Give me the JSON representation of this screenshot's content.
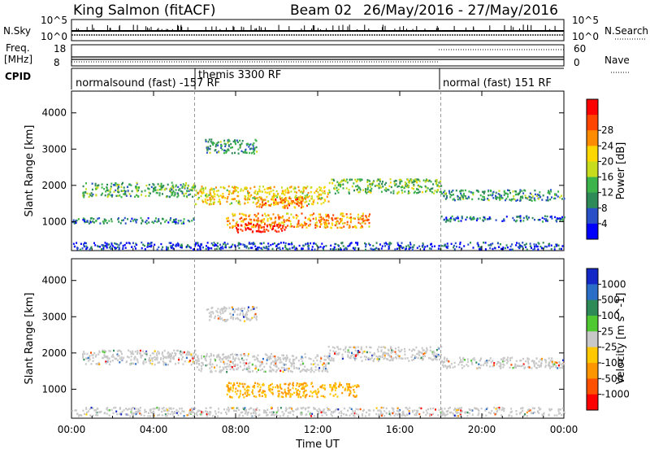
{
  "header": {
    "station": "King Salmon (fitACF)",
    "beam": "Beam 02",
    "date_range": "26/May/2016 - 27/May/2016"
  },
  "strips": {
    "nsky_label": "N.Sky",
    "nsky_ticks": [
      "10^5",
      "10^0"
    ],
    "nsearch_label": "N.Search",
    "nsearch_ticks": [
      "10^5",
      "10^0"
    ],
    "freq_label_line1": "Freq.",
    "freq_label_line2": "[MHz]",
    "freq_ticks": [
      "18",
      "8"
    ],
    "nave_label": "Nave",
    "nave_ticks": [
      "60",
      "0"
    ],
    "cpid_label": "CPID",
    "cpid_segments": [
      {
        "label": "normalsound (fast) -157 RF",
        "start_hour": 0
      },
      {
        "label": "themis 3300 RF",
        "start_hour": 6
      },
      {
        "label": "normal (fast) 151 RF",
        "start_hour": 18
      }
    ]
  },
  "chart_data": [
    {
      "type": "heatmap",
      "panel": "power",
      "ylabel": "Slant Range [km]",
      "xlabel": "",
      "ylim": [
        200,
        4600
      ],
      "y_ticks": [
        "1000",
        "2000",
        "3000",
        "4000"
      ],
      "y_tick_values": [
        1000,
        2000,
        3000,
        4000
      ],
      "x_ticks": [
        "00:00",
        "04:00",
        "08:00",
        "12:00",
        "16:00",
        "20:00",
        "00:00"
      ],
      "x_tick_hours": [
        0,
        4,
        8,
        12,
        16,
        20,
        24
      ],
      "colorbar_label": "Power [dB]",
      "colorbar_ticks": [
        "4",
        "8",
        "12",
        "16",
        "20",
        "24",
        "28"
      ],
      "colorbar_colors": [
        "#0000ff",
        "#2a50c8",
        "#2e8b57",
        "#3cb44b",
        "#c8dc1e",
        "#ffd700",
        "#ff8c00",
        "#ff4500",
        "#ff0000"
      ],
      "regions": [
        {
          "hour_start": 0.5,
          "hour_end": 6.0,
          "range_center": 1900,
          "range_halfwidth": 200,
          "level": 0.35
        },
        {
          "hour_start": 6.0,
          "hour_end": 12.5,
          "range_center": 1750,
          "range_halfwidth": 250,
          "level": 0.6
        },
        {
          "hour_start": 9.0,
          "hour_end": 11.5,
          "range_center": 1550,
          "range_halfwidth": 150,
          "level": 0.75
        },
        {
          "hour_start": 12.5,
          "hour_end": 18.0,
          "range_center": 2000,
          "range_halfwidth": 200,
          "level": 0.4
        },
        {
          "hour_start": 18.0,
          "hour_end": 24.0,
          "range_center": 1750,
          "range_halfwidth": 150,
          "level": 0.3
        },
        {
          "hour_start": 7.5,
          "hour_end": 14.5,
          "range_center": 1050,
          "range_halfwidth": 200,
          "level": 0.7
        },
        {
          "hour_start": 8.0,
          "hour_end": 10.5,
          "range_center": 850,
          "range_halfwidth": 120,
          "level": 0.95
        },
        {
          "hour_start": 6.5,
          "hour_end": 9.0,
          "range_center": 3100,
          "range_halfwidth": 200,
          "level": 0.3
        },
        {
          "hour_start": 0.0,
          "hour_end": 6.0,
          "range_center": 1050,
          "range_halfwidth": 80,
          "level": 0.25
        },
        {
          "hour_start": 18.0,
          "hour_end": 24.0,
          "range_center": 1100,
          "range_halfwidth": 80,
          "level": 0.2
        },
        {
          "hour_start": 0.0,
          "hour_end": 24.0,
          "range_center": 350,
          "range_halfwidth": 100,
          "level": 0.15
        }
      ]
    },
    {
      "type": "heatmap",
      "panel": "velocity",
      "ylabel": "Slant Range [km]",
      "xlabel": "Time UT",
      "ylim": [
        200,
        4600
      ],
      "y_ticks": [
        "1000",
        "2000",
        "3000",
        "4000"
      ],
      "y_tick_values": [
        1000,
        2000,
        3000,
        4000
      ],
      "x_ticks": [
        "00:00",
        "04:00",
        "08:00",
        "12:00",
        "16:00",
        "20:00",
        "00:00"
      ],
      "x_tick_hours": [
        0,
        4,
        8,
        12,
        16,
        20,
        24
      ],
      "colorbar_label": "Velocity [m s^-1]",
      "colorbar_ticks": [
        "1000",
        "500",
        "100",
        "25",
        "-25",
        "-100",
        "-500",
        "-1000"
      ],
      "colorbar_colors": [
        "#1428c8",
        "#2a6ec8",
        "#2e8b57",
        "#50c832",
        "#c8c8c8",
        "#ffc800",
        "#ff9600",
        "#ff5000",
        "#ff0000"
      ],
      "regions": [
        {
          "hour_start": 0.5,
          "hour_end": 6.0,
          "range_center": 1900,
          "range_halfwidth": 200,
          "level": 0.5
        },
        {
          "hour_start": 6.0,
          "hour_end": 12.5,
          "range_center": 1750,
          "range_halfwidth": 250,
          "level": 0.5
        },
        {
          "hour_start": 12.5,
          "hour_end": 18.0,
          "range_center": 2000,
          "range_halfwidth": 200,
          "level": 0.5
        },
        {
          "hour_start": 18.0,
          "hour_end": 24.0,
          "range_center": 1750,
          "range_halfwidth": 150,
          "level": 0.5
        },
        {
          "hour_start": 7.5,
          "hour_end": 14.0,
          "range_center": 1000,
          "range_halfwidth": 200,
          "level": 0.62
        },
        {
          "hour_start": 6.5,
          "hour_end": 9.0,
          "range_center": 3100,
          "range_halfwidth": 200,
          "level": 0.4
        },
        {
          "hour_start": 0.0,
          "hour_end": 24.0,
          "range_center": 400,
          "range_halfwidth": 120,
          "level": 0.45
        }
      ]
    }
  ]
}
